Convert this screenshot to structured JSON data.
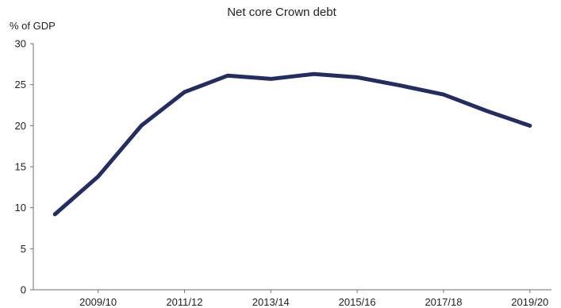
{
  "chart_data": {
    "type": "line",
    "title": "Net core Crown debt",
    "xlabel": "",
    "ylabel": "% of GDP",
    "x": [
      "2008/09",
      "2009/10",
      "2010/11",
      "2011/12",
      "2012/13",
      "2013/14",
      "2014/15",
      "2015/16",
      "2016/17",
      "2017/18",
      "2018/19",
      "2019/20"
    ],
    "x_tick_labels": [
      "2009/10",
      "2011/12",
      "2013/14",
      "2015/16",
      "2017/18",
      "2019/20"
    ],
    "ylim": [
      0,
      30
    ],
    "y_ticks": [
      "0",
      "5",
      "10",
      "15",
      "20",
      "25",
      "30"
    ],
    "grid": false,
    "series": [
      {
        "values": [
          9.2,
          13.8,
          20.0,
          24.1,
          26.1,
          25.7,
          26.3,
          25.9,
          24.9,
          23.8,
          21.8,
          20.0
        ],
        "color": "#232d62"
      }
    ]
  }
}
